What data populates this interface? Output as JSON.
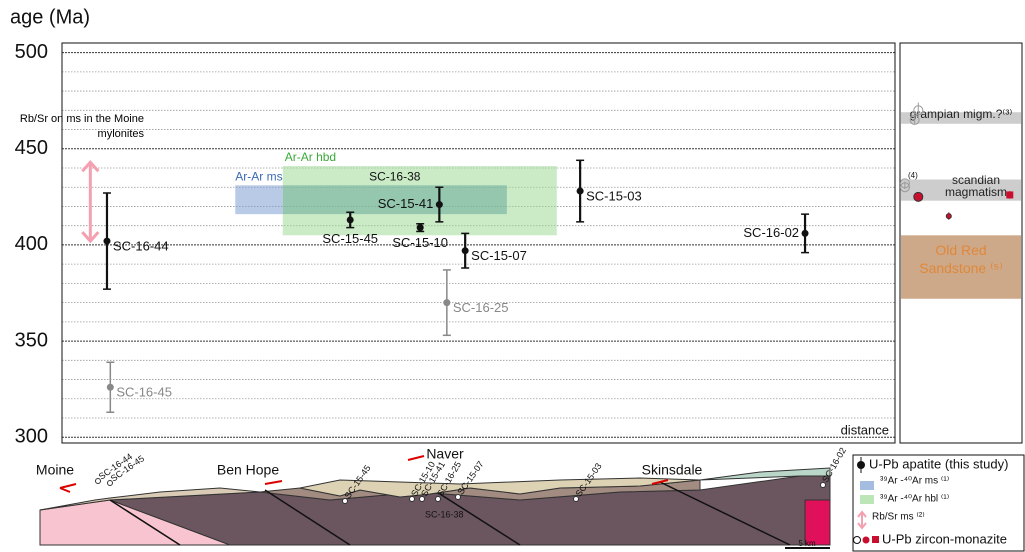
{
  "chart_data": {
    "type": "errorbar",
    "y_label": "age (Ma)",
    "x_label": "distance",
    "ylim": [
      297,
      505
    ],
    "yticks": [
      300,
      350,
      400,
      450,
      500
    ],
    "yminor": [
      310,
      320,
      330,
      340,
      360,
      370,
      380,
      390,
      410,
      420,
      430,
      440,
      460,
      470,
      480,
      490
    ],
    "xlim": [
      0,
      100
    ],
    "samples": {
      "labels": [
        "SC-16-44",
        "SC-16-45",
        "SC-15-45",
        "SC-15-10",
        "SC-15-41",
        "SC-16-25",
        "SC-15-07",
        "SC-15-03",
        "SC-16-02"
      ],
      "x": [
        5.4,
        5.8,
        34.6,
        43.0,
        45.3,
        46.2,
        48.4,
        62.2,
        89.2
      ],
      "values": [
        402,
        326,
        413,
        409,
        421,
        370,
        397,
        428,
        406
      ],
      "errors": [
        25,
        13,
        4,
        2,
        9,
        17,
        9,
        16,
        10
      ],
      "colors": [
        "#111111",
        "#888888",
        "#111111",
        "#111111",
        "#111111",
        "#888888",
        "#111111",
        "#111111",
        "#111111"
      ],
      "label_pos": [
        "right",
        "right",
        "below",
        "below",
        "left",
        "right",
        "right",
        "right",
        "left"
      ]
    },
    "ranges": [
      {
        "label": "Ar-Ar ms",
        "xlim": [
          20.8,
          26.5
        ],
        "ylim": [
          416,
          431
        ],
        "color": "#7f9fd4",
        "label_color": "#3a6bb5"
      },
      {
        "label": "Ar-Ar hbd",
        "xlim": [
          26.5,
          59.4
        ],
        "ylim": [
          405,
          441
        ],
        "color": "#9fdb98",
        "label_color": "#3aaa3a"
      },
      {
        "label": "SC-16-38",
        "xlim": [
          26.5,
          53.4
        ],
        "ylim": [
          416,
          431
        ],
        "color": "#6aa89a",
        "label_color": "#111111"
      }
    ],
    "rbsr": {
      "label": "Rb/Sr on ms in the Moine mylonites",
      "x": 3.4,
      "ylim": [
        402,
        443
      ],
      "color": "#f4a0b0"
    },
    "reference": {
      "xlim": [
        0,
        100
      ],
      "ranges": [
        {
          "label": "grampian migm.?⁽³⁾",
          "ylim": [
            463,
            469
          ],
          "color": "#c8c8c8",
          "label_color": "#222222"
        },
        {
          "label": "scandian magmatism",
          "ylim": [
            423,
            434
          ],
          "color": "#c8c8c8",
          "label_color": "#222222"
        },
        {
          "label": "Old Red Sandstone ⁽⁵⁾",
          "ylim": [
            372,
            405
          ],
          "color": "#c9a07c",
          "label_color": "#e0883a"
        }
      ],
      "note": "(4)",
      "points": {
        "x": [
          4,
          4,
          15,
          12,
          15,
          40,
          90
        ],
        "values": [
          432,
          430,
          470,
          465,
          425,
          415,
          426
        ],
        "errors": [
          1,
          1,
          4,
          2,
          2,
          2,
          2
        ],
        "colors": [
          "#999999",
          "#999999",
          "#999999",
          "#999999",
          "#c8102e",
          "#c8102e",
          "#c8102e"
        ],
        "markers": [
          "open",
          "open",
          "open",
          "open",
          "circle",
          "dot",
          "square"
        ]
      }
    }
  },
  "section": {
    "places": [
      "Moine",
      "Ben Hope",
      "Naver",
      "Skinsdale"
    ],
    "samples": [
      "SC-16-44",
      "SC-16-45",
      "SC-15-45",
      "SC-15-10",
      "SC-15-41",
      "SC-16-25",
      "SC-15-07",
      "SC-16-38",
      "SC-15-03",
      "SC-16-02"
    ],
    "scale": "5 km"
  },
  "legend": {
    "items": [
      "U-Pb apatite (this study)",
      "³⁹Ar -⁴⁰Ar ms ⁽¹⁾",
      "³⁹Ar -⁴⁰Ar hbl ⁽¹⁾",
      "Rb/Sr ms ⁽²⁾",
      "U-Pb zircon-monazite"
    ]
  }
}
